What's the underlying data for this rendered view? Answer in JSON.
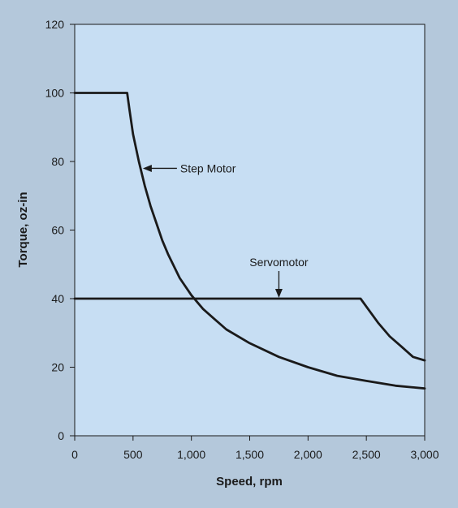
{
  "colors": {
    "page_background": "#b4c8db",
    "plot_background": "#c7def3",
    "ink": "#1a1a1a"
  },
  "chart_data": {
    "type": "line",
    "title": "",
    "xlabel": "Speed, rpm",
    "ylabel": "Torque, oz-in",
    "xlim": [
      0,
      3000
    ],
    "ylim": [
      0,
      120
    ],
    "x_ticks": [
      {
        "value": 0,
        "label": "0"
      },
      {
        "value": 500,
        "label": "500"
      },
      {
        "value": 1000,
        "label": "1,000"
      },
      {
        "value": 1500,
        "label": "1,500"
      },
      {
        "value": 2000,
        "label": "2,000"
      },
      {
        "value": 2500,
        "label": "2,500"
      },
      {
        "value": 3000,
        "label": "3,000"
      }
    ],
    "y_ticks": [
      {
        "value": 0,
        "label": "0"
      },
      {
        "value": 20,
        "label": "20"
      },
      {
        "value": 40,
        "label": "40"
      },
      {
        "value": 60,
        "label": "60"
      },
      {
        "value": 80,
        "label": "80"
      },
      {
        "value": 100,
        "label": "100"
      },
      {
        "value": 120,
        "label": "120"
      }
    ],
    "grid": false,
    "legend": "none",
    "series": [
      {
        "name": "Step Motor",
        "x": [
          0,
          450,
          470,
          500,
          550,
          600,
          650,
          700,
          750,
          800,
          900,
          1000,
          1100,
          1200,
          1300,
          1500,
          1750,
          2000,
          2250,
          2500,
          2750,
          3000
        ],
        "y": [
          100,
          100,
          95,
          88,
          80,
          73,
          67,
          62,
          57,
          53,
          46,
          41,
          37,
          34,
          31,
          27,
          23,
          20,
          17.5,
          16,
          14.6,
          13.8
        ]
      },
      {
        "name": "Servomotor",
        "x": [
          0,
          2450,
          2600,
          2700,
          2800,
          2900,
          3000
        ],
        "y": [
          40,
          40,
          33,
          29,
          26,
          23,
          22
        ]
      }
    ],
    "annotations": [
      {
        "text": "Step Motor",
        "target_series": "Step Motor",
        "arrow_to": {
          "x": 570,
          "y": 78
        }
      },
      {
        "text": "Servomotor",
        "target_series": "Servomotor",
        "arrow_to": {
          "x": 1750,
          "y": 40
        }
      }
    ]
  }
}
